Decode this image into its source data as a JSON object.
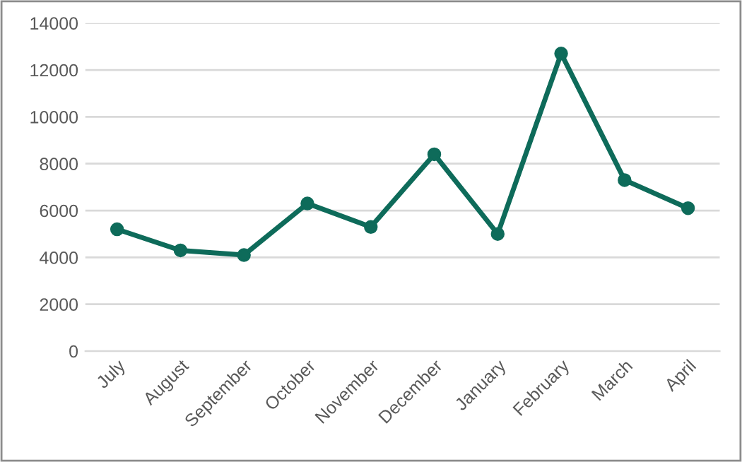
{
  "chart_data": {
    "type": "line",
    "categories": [
      "July",
      "August",
      "September",
      "October",
      "November",
      "December",
      "January",
      "February",
      "March",
      "April"
    ],
    "series": [
      {
        "color": "#0e6b5a",
        "values": [
          5200,
          4300,
          4100,
          6300,
          5300,
          8400,
          5000,
          12700,
          7300,
          6100
        ]
      }
    ],
    "ylim": [
      0,
      14000
    ],
    "yticks": [
      0,
      2000,
      4000,
      6000,
      8000,
      10000,
      12000,
      14000
    ],
    "grid": "y",
    "marker": "circle",
    "line_style": "solid",
    "legend": false
  }
}
